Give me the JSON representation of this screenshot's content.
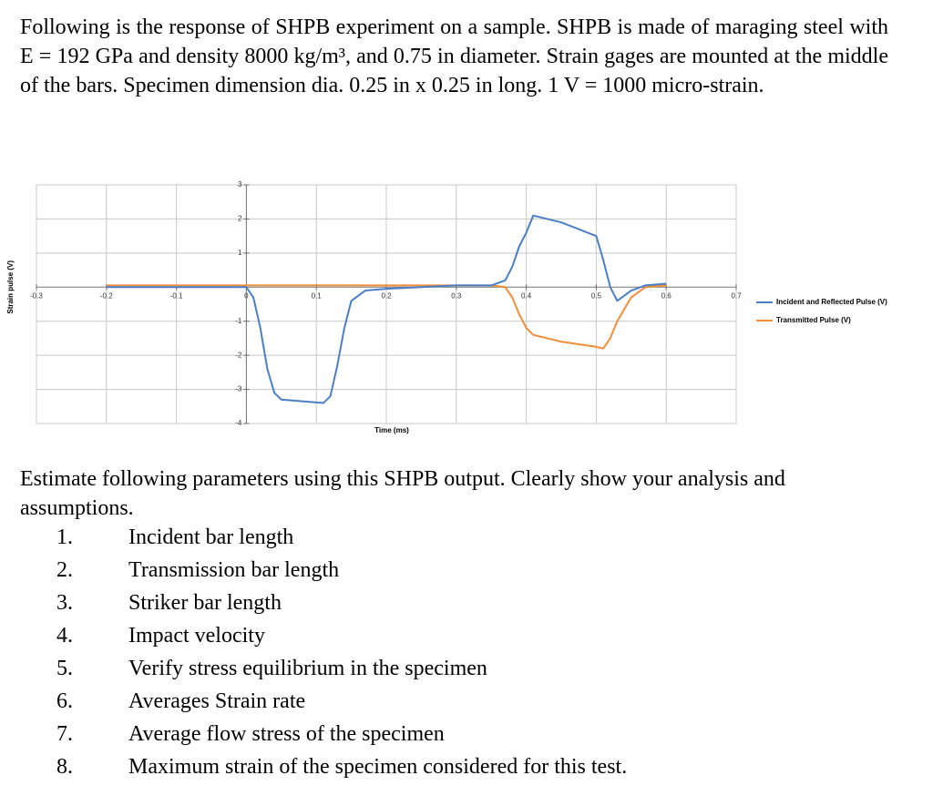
{
  "question": {
    "intro": "Following is the response of SHPB experiment on a sample. SHPB is made of maraging steel with E = 192 GPa and density 8000 kg/m³, and 0.75 in diameter. Strain gages are mounted at the middle of the bars. Specimen dimension dia. 0.25 in x 0.25 in long. 1 V = 1000 micro-strain.",
    "prompt": "Estimate following parameters using this SHPB output. Clearly show your analysis and assumptions.",
    "items": [
      {
        "number": "1.",
        "text": "Incident bar length"
      },
      {
        "number": "2.",
        "text": "Transmission bar length"
      },
      {
        "number": "3.",
        "text": "Striker bar length"
      },
      {
        "number": "4.",
        "text": "Impact velocity"
      },
      {
        "number": "5.",
        "text": "Verify stress equilibrium in the specimen"
      },
      {
        "number": "6.",
        "text": "Averages Strain rate"
      },
      {
        "number": "7.",
        "text": "Average flow stress of the specimen"
      },
      {
        "number": "8.",
        "text": "Maximum strain of the specimen considered for this test."
      }
    ]
  },
  "chart_data": {
    "type": "line",
    "x_label": "Time (ms)",
    "y_label": "Strain pulse (V)",
    "x": [
      -0.2,
      -0.1,
      0,
      0.01,
      0.02,
      0.03,
      0.04,
      0.05,
      0.08,
      0.11,
      0.12,
      0.13,
      0.14,
      0.15,
      0.17,
      0.2,
      0.25,
      0.3,
      0.35,
      0.37,
      0.38,
      0.39,
      0.4,
      0.41,
      0.45,
      0.5,
      0.51,
      0.52,
      0.53,
      0.55,
      0.57,
      0.6
    ],
    "series": [
      {
        "name": "Incident and Reflected Pulse (V)",
        "color": "#4a7fc8",
        "values": [
          0,
          0,
          0,
          -0.3,
          -1.2,
          -2.4,
          -3.1,
          -3.3,
          -3.35,
          -3.4,
          -3.2,
          -2.3,
          -1.2,
          -0.4,
          -0.1,
          -0.05,
          0,
          0.05,
          0.05,
          0.2,
          0.6,
          1.2,
          1.6,
          2.1,
          1.9,
          1.5,
          0.8,
          0,
          -0.4,
          -0.1,
          0.05,
          0.1
        ]
      },
      {
        "name": "Transmitted Pulse (V)",
        "color": "#f28c38",
        "values": [
          0.05,
          0.05,
          0.05,
          0.05,
          0.05,
          0.05,
          0.05,
          0.05,
          0.05,
          0.05,
          0.05,
          0.05,
          0.05,
          0.05,
          0.05,
          0.05,
          0.05,
          0.05,
          0.05,
          0,
          -0.3,
          -0.8,
          -1.2,
          -1.4,
          -1.6,
          -1.75,
          -1.8,
          -1.5,
          -1.0,
          -0.3,
          0,
          0.05
        ]
      }
    ],
    "xlim": [
      -0.3,
      0.7
    ],
    "ylim": [
      -4,
      3
    ],
    "xticks": [
      -0.3,
      -0.2,
      -0.1,
      0,
      0.1,
      0.2,
      0.3,
      0.4,
      0.5,
      0.6,
      0.7
    ],
    "yticks": [
      -4,
      -3,
      -2,
      -1,
      1,
      2,
      3
    ],
    "grid": true,
    "legend": "right"
  }
}
